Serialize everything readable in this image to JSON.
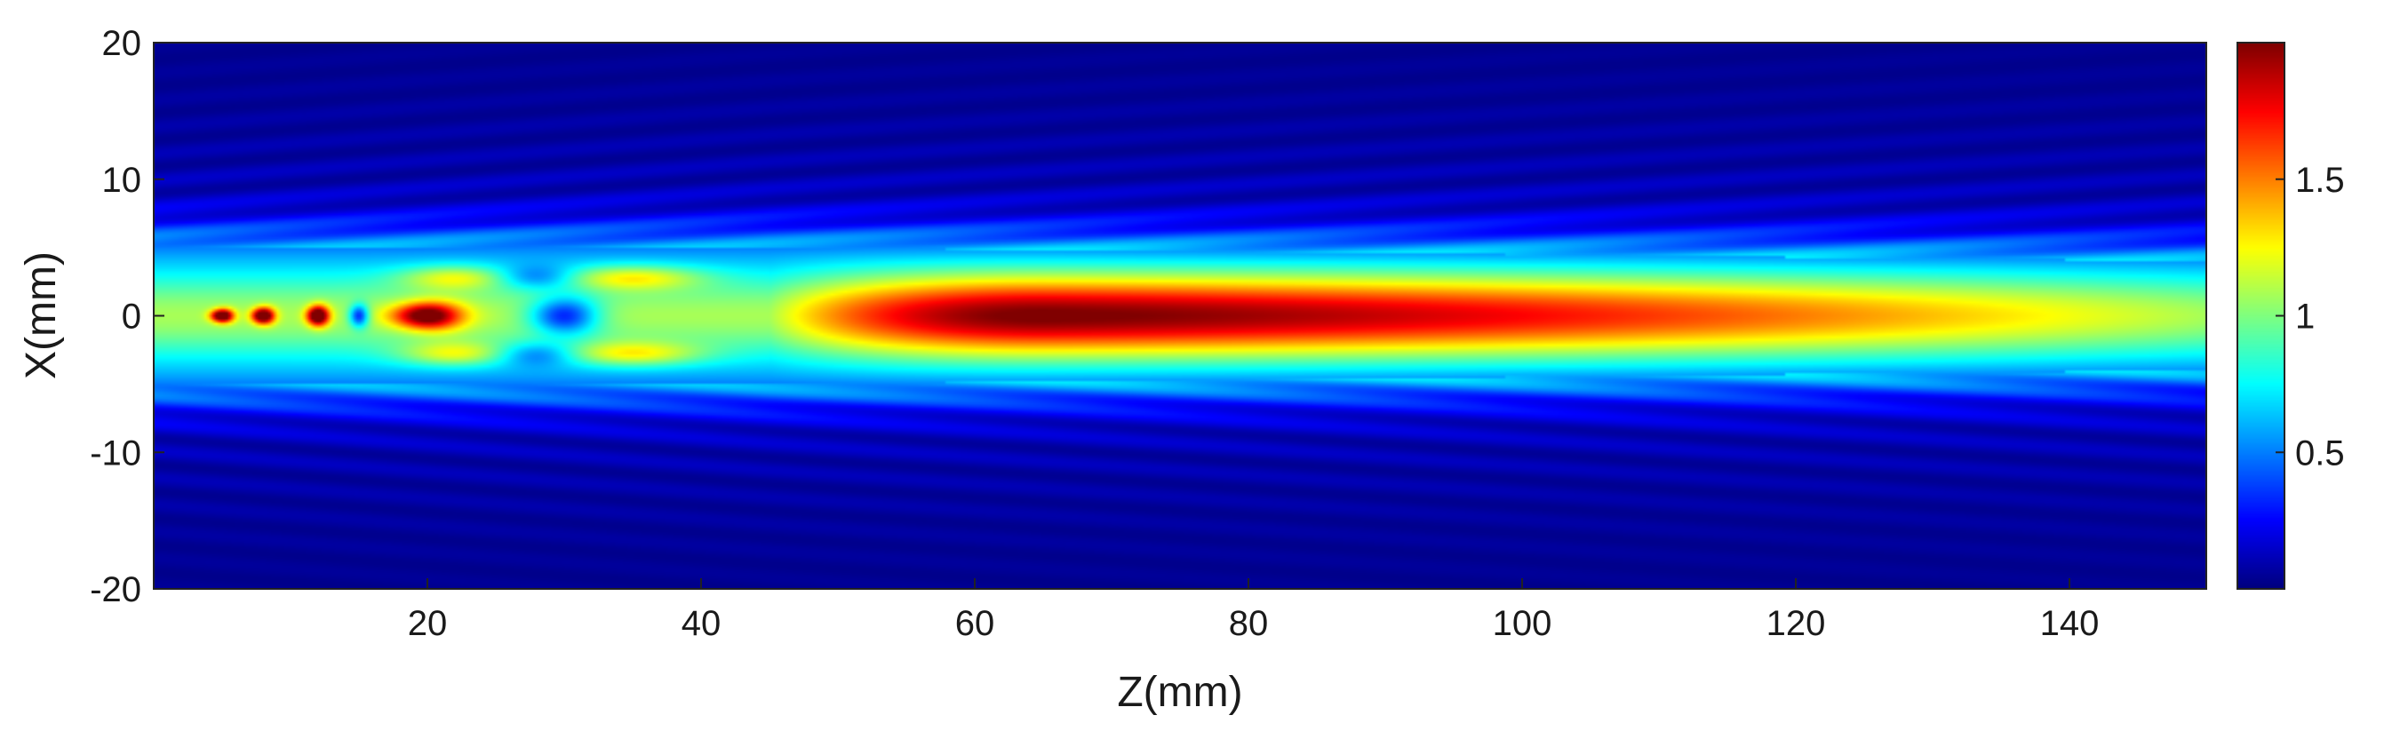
{
  "chart_data": {
    "type": "heatmap",
    "title": "",
    "xlabel": "Z(mm)",
    "ylabel": "X(mm)",
    "xlim": [
      0,
      150
    ],
    "ylim": [
      -20,
      20
    ],
    "xticks": [
      20,
      40,
      60,
      80,
      100,
      120,
      140
    ],
    "xtick_labels": [
      "20",
      "40",
      "60",
      "80",
      "100",
      "120",
      "140"
    ],
    "yticks": [
      20,
      10,
      0,
      -10,
      -20
    ],
    "ytick_labels": [
      "20",
      "10",
      "0",
      "-10",
      "-20"
    ],
    "colormap": "jet",
    "color_range": [
      0,
      2
    ],
    "colorbar_ticks": [
      1.5,
      1,
      0.5
    ],
    "colorbar_tick_labels": [
      "1.5",
      "1",
      "0.5"
    ],
    "grid": false,
    "description_of_field": {
      "source_half_width_mm": 6,
      "main_lobe_peak_z_mm": 65,
      "main_lobe_peak_value": 1.95,
      "near_field_maxima_z_mm": [
        5,
        8,
        12,
        20
      ],
      "near_field_minima_z_mm": [
        15,
        30
      ],
      "beam_half_width_at_150mm": 5
    }
  }
}
